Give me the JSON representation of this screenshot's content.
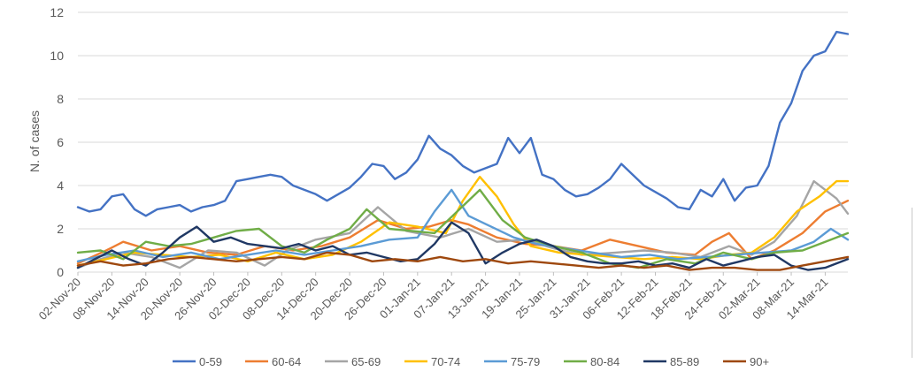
{
  "chart_data": {
    "type": "line",
    "title": "",
    "xlabel": "",
    "ylabel": "N. of cases",
    "ylim": [
      0,
      12
    ],
    "yticks": [
      0,
      2,
      4,
      6,
      8,
      10,
      12
    ],
    "x_start": "2020-11-02",
    "x_end": "2021-03-18",
    "x_tick_labels": [
      "02-Nov-20",
      "08-Nov-20",
      "14-Nov-20",
      "20-Nov-20",
      "26-Nov-20",
      "02-Dec-20",
      "08-Dec-20",
      "14-Dec-20",
      "20-Dec-20",
      "26-Dec-20",
      "01-Jan-21",
      "07-Jan-21",
      "13-Jan-21",
      "19-Jan-21",
      "25-Jan-21",
      "31-Jan-21",
      "06-Feb-21",
      "12-Feb-21",
      "18-Feb-21",
      "24-Feb-21",
      "02-Mar-21",
      "08-Mar-21",
      "14-Mar-21"
    ],
    "grid": true,
    "legend_position": "bottom",
    "series": [
      {
        "name": "0-59",
        "color": "#4472c4",
        "x": [
          "2020-11-02",
          "2020-11-04",
          "2020-11-06",
          "2020-11-08",
          "2020-11-10",
          "2020-11-12",
          "2020-11-14",
          "2020-11-16",
          "2020-11-18",
          "2020-11-20",
          "2020-11-22",
          "2020-11-24",
          "2020-11-26",
          "2020-11-28",
          "2020-11-30",
          "2020-12-02",
          "2020-12-04",
          "2020-12-06",
          "2020-12-08",
          "2020-12-10",
          "2020-12-12",
          "2020-12-14",
          "2020-12-16",
          "2020-12-18",
          "2020-12-20",
          "2020-12-22",
          "2020-12-24",
          "2020-12-26",
          "2020-12-28",
          "2020-12-30",
          "2021-01-01",
          "2021-01-03",
          "2021-01-05",
          "2021-01-07",
          "2021-01-09",
          "2021-01-11",
          "2021-01-13",
          "2021-01-15",
          "2021-01-17",
          "2021-01-19",
          "2021-01-21",
          "2021-01-23",
          "2021-01-25",
          "2021-01-27",
          "2021-01-29",
          "2021-01-31",
          "2021-02-02",
          "2021-02-04",
          "2021-02-06",
          "2021-02-08",
          "2021-02-10",
          "2021-02-12",
          "2021-02-14",
          "2021-02-16",
          "2021-02-18",
          "2021-02-20",
          "2021-02-22",
          "2021-02-24",
          "2021-02-26",
          "2021-02-28",
          "2021-03-02",
          "2021-03-04",
          "2021-03-06",
          "2021-03-08",
          "2021-03-10",
          "2021-03-12",
          "2021-03-14",
          "2021-03-16",
          "2021-03-18"
        ],
        "values": [
          3.0,
          2.8,
          2.9,
          3.5,
          3.6,
          2.9,
          2.6,
          2.9,
          3.0,
          3.1,
          2.8,
          3.0,
          3.1,
          3.3,
          4.2,
          4.3,
          4.4,
          4.5,
          4.4,
          4.0,
          3.8,
          3.6,
          3.3,
          3.6,
          3.9,
          4.4,
          5.0,
          4.9,
          4.3,
          4.6,
          5.2,
          6.3,
          5.7,
          5.4,
          4.9,
          4.6,
          4.8,
          5.0,
          6.2,
          5.5,
          6.2,
          4.5,
          4.3,
          3.8,
          3.5,
          3.6,
          3.9,
          4.3,
          5.0,
          4.5,
          4.0,
          3.7,
          3.4,
          3.0,
          2.9,
          3.8,
          3.5,
          4.3,
          3.3,
          3.9,
          4.0,
          4.9,
          6.9,
          7.8,
          9.3,
          10.0,
          10.2,
          11.1,
          11.0
        ]
      },
      {
        "name": "60-64",
        "color": "#ed7d31",
        "x": [
          "2020-11-02",
          "2020-11-07",
          "2020-11-10",
          "2020-11-15",
          "2020-11-20",
          "2020-11-25",
          "2020-11-30",
          "2020-12-05",
          "2020-12-10",
          "2020-12-15",
          "2020-12-20",
          "2020-12-25",
          "2020-12-30",
          "2021-01-03",
          "2021-01-07",
          "2021-01-10",
          "2021-01-15",
          "2021-01-20",
          "2021-01-25",
          "2021-01-30",
          "2021-02-04",
          "2021-02-09",
          "2021-02-14",
          "2021-02-19",
          "2021-02-22",
          "2021-02-25",
          "2021-03-01",
          "2021-03-05",
          "2021-03-10",
          "2021-03-14",
          "2021-03-18"
        ],
        "values": [
          0.4,
          1.0,
          1.4,
          1.0,
          1.2,
          0.9,
          0.8,
          1.2,
          1.0,
          1.2,
          1.6,
          2.4,
          2.0,
          2.1,
          2.4,
          2.2,
          1.6,
          1.3,
          1.2,
          1.0,
          1.5,
          1.2,
          0.9,
          0.8,
          1.4,
          1.8,
          0.6,
          1.0,
          1.8,
          2.8,
          3.3
        ]
      },
      {
        "name": "65-69",
        "color": "#a5a5a5",
        "x": [
          "2020-11-02",
          "2020-11-06",
          "2020-11-10",
          "2020-11-15",
          "2020-11-20",
          "2020-11-25",
          "2020-11-30",
          "2020-12-05",
          "2020-12-09",
          "2020-12-14",
          "2020-12-20",
          "2020-12-25",
          "2020-12-30",
          "2021-01-05",
          "2021-01-10",
          "2021-01-15",
          "2021-01-20",
          "2021-01-25",
          "2021-01-30",
          "2021-02-05",
          "2021-02-10",
          "2021-02-15",
          "2021-02-20",
          "2021-02-25",
          "2021-03-01",
          "2021-03-05",
          "2021-03-09",
          "2021-03-12",
          "2021-03-16",
          "2021-03-18"
        ],
        "values": [
          0.2,
          0.6,
          0.9,
          0.7,
          0.2,
          1.0,
          0.9,
          0.3,
          1.0,
          1.5,
          1.8,
          3.0,
          1.9,
          1.6,
          2.0,
          1.4,
          1.5,
          1.1,
          0.8,
          0.9,
          1.0,
          0.9,
          0.7,
          1.2,
          0.8,
          1.4,
          2.6,
          4.2,
          3.4,
          2.7
        ]
      },
      {
        "name": "70-74",
        "color": "#ffc000",
        "x": [
          "2020-11-02",
          "2020-11-07",
          "2020-11-12",
          "2020-11-17",
          "2020-11-22",
          "2020-11-27",
          "2020-12-02",
          "2020-12-07",
          "2020-12-12",
          "2020-12-17",
          "2020-12-22",
          "2020-12-27",
          "2021-01-01",
          "2021-01-06",
          "2021-01-09",
          "2021-01-12",
          "2021-01-15",
          "2021-01-18",
          "2021-01-21",
          "2021-01-26",
          "2021-01-31",
          "2021-02-05",
          "2021-02-10",
          "2021-02-15",
          "2021-02-20",
          "2021-02-25",
          "2021-03-01",
          "2021-03-05",
          "2021-03-09",
          "2021-03-13",
          "2021-03-16",
          "2021-03-18"
        ],
        "values": [
          0.3,
          0.6,
          0.9,
          0.8,
          0.7,
          0.8,
          0.5,
          0.9,
          0.6,
          0.8,
          1.4,
          2.3,
          2.1,
          1.8,
          3.3,
          4.4,
          3.5,
          2.2,
          1.2,
          0.9,
          0.8,
          0.7,
          0.6,
          0.7,
          0.6,
          0.8,
          0.9,
          1.6,
          2.8,
          3.5,
          4.2,
          4.2
        ]
      },
      {
        "name": "75-79",
        "color": "#5b9bd5",
        "x": [
          "2020-11-02",
          "2020-11-07",
          "2020-11-12",
          "2020-11-17",
          "2020-11-22",
          "2020-11-27",
          "2020-12-02",
          "2020-12-07",
          "2020-12-12",
          "2020-12-17",
          "2020-12-22",
          "2020-12-27",
          "2021-01-01",
          "2021-01-04",
          "2021-01-07",
          "2021-01-10",
          "2021-01-14",
          "2021-01-18",
          "2021-01-22",
          "2021-01-27",
          "2021-02-01",
          "2021-02-06",
          "2021-02-11",
          "2021-02-16",
          "2021-02-21",
          "2021-02-26",
          "2021-03-03",
          "2021-03-08",
          "2021-03-12",
          "2021-03-15",
          "2021-03-18"
        ],
        "values": [
          0.5,
          0.8,
          1.0,
          0.7,
          0.9,
          0.6,
          0.8,
          1.0,
          0.8,
          1.0,
          1.2,
          1.5,
          1.6,
          2.8,
          3.8,
          2.6,
          2.1,
          1.6,
          1.3,
          1.1,
          0.9,
          0.7,
          0.8,
          0.6,
          0.7,
          0.8,
          0.9,
          1.0,
          1.4,
          2.0,
          1.5
        ]
      },
      {
        "name": "80-84",
        "color": "#70ad47",
        "x": [
          "2020-11-02",
          "2020-11-06",
          "2020-11-10",
          "2020-11-14",
          "2020-11-18",
          "2020-11-22",
          "2020-11-26",
          "2020-11-30",
          "2020-12-04",
          "2020-12-08",
          "2020-12-12",
          "2020-12-16",
          "2020-12-20",
          "2020-12-23",
          "2020-12-27",
          "2020-12-31",
          "2021-01-04",
          "2021-01-08",
          "2021-01-12",
          "2021-01-16",
          "2021-01-20",
          "2021-01-25",
          "2021-01-30",
          "2021-02-04",
          "2021-02-09",
          "2021-02-14",
          "2021-02-19",
          "2021-02-24",
          "2021-03-01",
          "2021-03-05",
          "2021-03-10",
          "2021-03-14",
          "2021-03-18"
        ],
        "values": [
          0.9,
          1.0,
          0.6,
          1.4,
          1.2,
          1.3,
          1.6,
          1.9,
          2.0,
          1.2,
          0.9,
          1.5,
          2.0,
          2.9,
          2.0,
          1.9,
          1.8,
          2.8,
          3.8,
          2.4,
          1.6,
          1.2,
          0.9,
          0.4,
          0.2,
          0.6,
          0.4,
          0.9,
          0.6,
          0.9,
          1.0,
          1.4,
          1.8
        ]
      },
      {
        "name": "85-89",
        "color": "#203864",
        "x": [
          "2020-11-02",
          "2020-11-05",
          "2020-11-08",
          "2020-11-11",
          "2020-11-14",
          "2020-11-17",
          "2020-11-20",
          "2020-11-23",
          "2020-11-26",
          "2020-11-29",
          "2020-12-02",
          "2020-12-05",
          "2020-12-08",
          "2020-12-11",
          "2020-12-14",
          "2020-12-17",
          "2020-12-20",
          "2020-12-23",
          "2020-12-26",
          "2020-12-29",
          "2021-01-01",
          "2021-01-04",
          "2021-01-07",
          "2021-01-10",
          "2021-01-13",
          "2021-01-16",
          "2021-01-19",
          "2021-01-22",
          "2021-01-25",
          "2021-01-28",
          "2021-01-31",
          "2021-02-03",
          "2021-02-06",
          "2021-02-09",
          "2021-02-12",
          "2021-02-15",
          "2021-02-18",
          "2021-02-21",
          "2021-02-24",
          "2021-02-27",
          "2021-03-02",
          "2021-03-05",
          "2021-03-08",
          "2021-03-11",
          "2021-03-14",
          "2021-03-18"
        ],
        "values": [
          0.2,
          0.6,
          1.0,
          0.6,
          0.3,
          0.9,
          1.6,
          2.1,
          1.4,
          1.6,
          1.3,
          1.2,
          1.1,
          1.3,
          1.0,
          1.2,
          0.8,
          0.9,
          0.7,
          0.5,
          0.6,
          1.3,
          2.3,
          1.8,
          0.4,
          0.9,
          1.3,
          1.5,
          1.2,
          0.7,
          0.5,
          0.4,
          0.4,
          0.5,
          0.3,
          0.4,
          0.2,
          0.6,
          0.3,
          0.5,
          0.7,
          0.8,
          0.3,
          0.1,
          0.2,
          0.6
        ]
      },
      {
        "name": "90+",
        "color": "#9e480e",
        "x": [
          "2020-11-02",
          "2020-11-06",
          "2020-11-10",
          "2020-11-14",
          "2020-11-18",
          "2020-11-22",
          "2020-11-26",
          "2020-11-30",
          "2020-12-04",
          "2020-12-08",
          "2020-12-12",
          "2020-12-16",
          "2020-12-20",
          "2020-12-24",
          "2020-12-28",
          "2021-01-01",
          "2021-01-05",
          "2021-01-09",
          "2021-01-13",
          "2021-01-17",
          "2021-01-21",
          "2021-01-25",
          "2021-01-29",
          "2021-02-02",
          "2021-02-06",
          "2021-02-10",
          "2021-02-14",
          "2021-02-18",
          "2021-02-22",
          "2021-02-26",
          "2021-03-02",
          "2021-03-06",
          "2021-03-10",
          "2021-03-14",
          "2021-03-18"
        ],
        "values": [
          0.3,
          0.5,
          0.3,
          0.4,
          0.6,
          0.7,
          0.6,
          0.5,
          0.6,
          0.7,
          0.6,
          0.9,
          0.8,
          0.5,
          0.6,
          0.5,
          0.7,
          0.5,
          0.6,
          0.4,
          0.5,
          0.4,
          0.3,
          0.2,
          0.3,
          0.2,
          0.3,
          0.1,
          0.2,
          0.2,
          0.1,
          0.1,
          0.3,
          0.5,
          0.7
        ]
      }
    ]
  }
}
